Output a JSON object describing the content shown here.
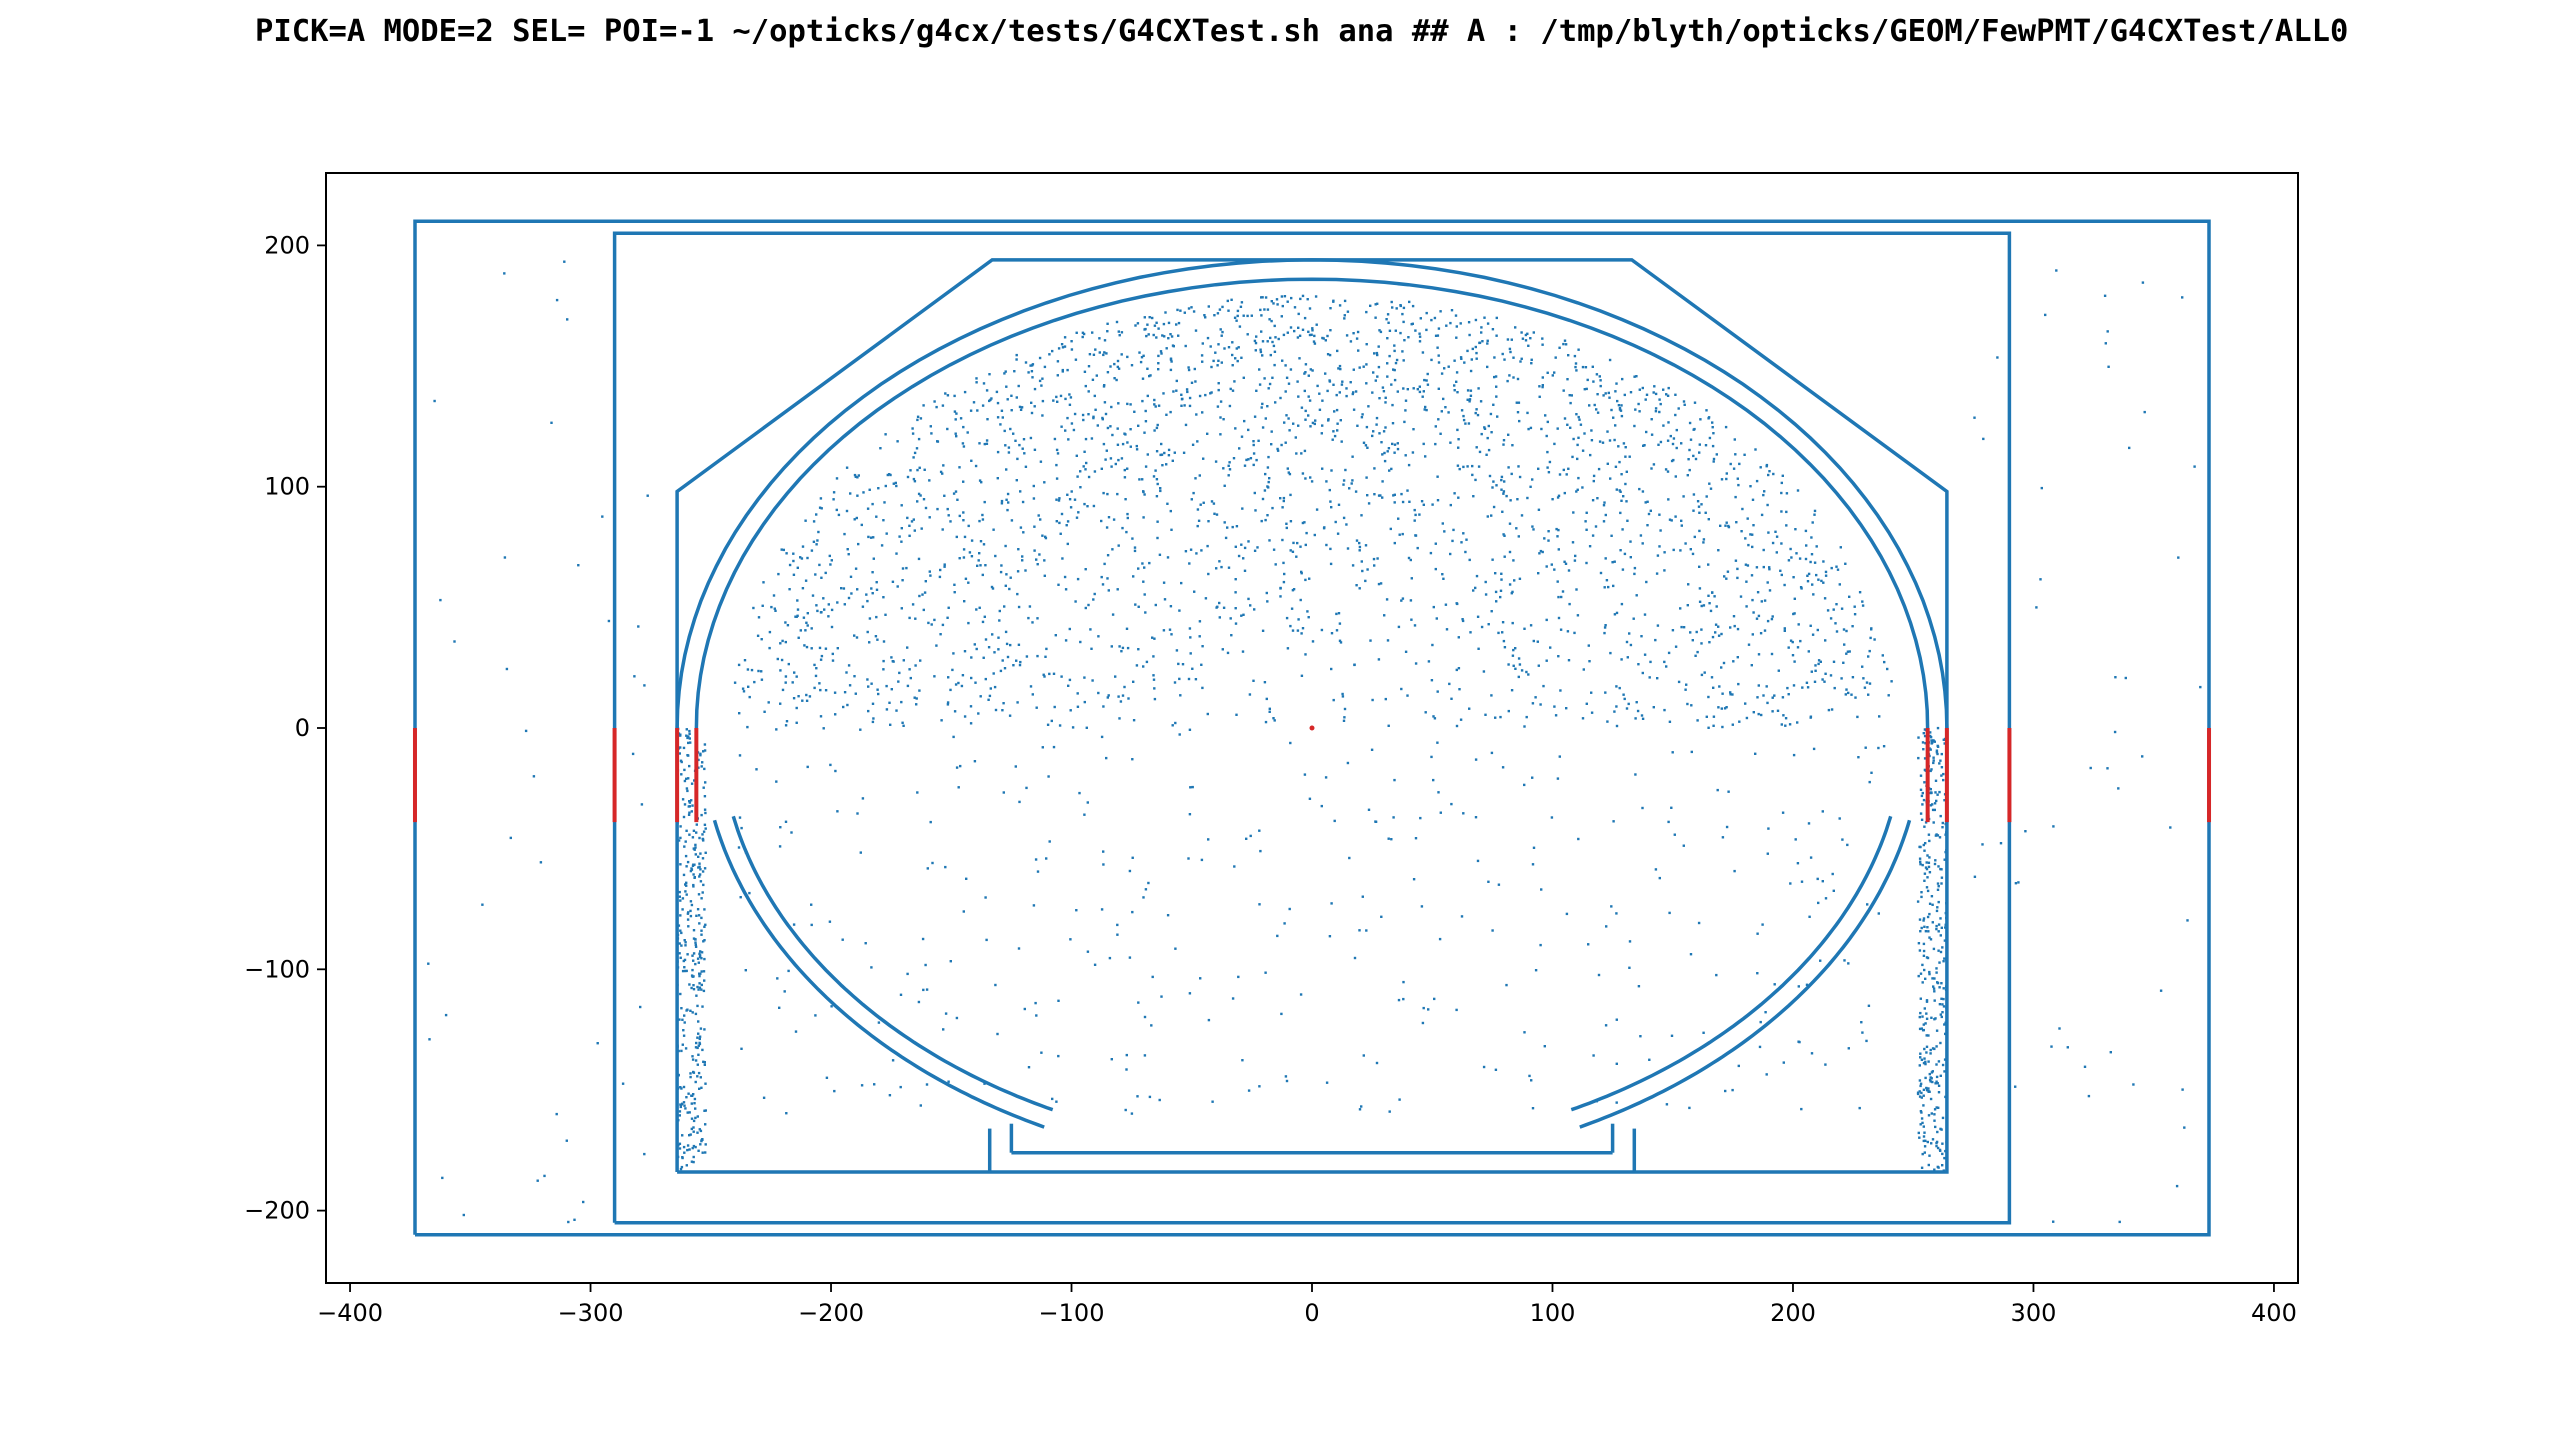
{
  "title": "PICK=A MODE=2 SEL= POI=-1 ~/opticks/g4cx/tests/G4CXTest.sh ana  ## A : /tmp/blyth/opticks/GEOM/FewPMT/G4CXTest/ALL0",
  "chart_data": {
    "type": "scatter",
    "title": "PICK=A MODE=2 SEL= POI=-1 ~/opticks/g4cx/tests/G4CXTest.sh ana  ## A : /tmp/blyth/opticks/GEOM/FewPMT/G4CXTest/ALL0",
    "xlabel": "",
    "ylabel": "",
    "xlim": [
      -410,
      410
    ],
    "ylim": [
      -230,
      230
    ],
    "grid": false,
    "legend": "none",
    "x_ticks": [
      -400,
      -300,
      -200,
      -100,
      0,
      100,
      200,
      300,
      400
    ],
    "x_tick_labels": [
      "−400",
      "−300",
      "−200",
      "−100",
      "0",
      "100",
      "200",
      "300",
      "400"
    ],
    "y_ticks": [
      -200,
      -100,
      0,
      100,
      200
    ],
    "y_tick_labels": [
      "−200",
      "−100",
      "0",
      "100",
      "200"
    ],
    "series": [
      {
        "kind": "outline",
        "color": "#1f77b4",
        "polylines": [
          [
            [
              -373,
              -210
            ],
            [
              373,
              -210
            ],
            [
              373,
              210
            ],
            [
              -373,
              210
            ],
            [
              -373,
              -210
            ]
          ],
          [
            [
              -290,
              -205
            ],
            [
              290,
              -205
            ],
            [
              290,
              205
            ],
            [
              -290,
              205
            ],
            [
              -290,
              -205
            ]
          ],
          [
            [
              -264,
              -184
            ],
            [
              264,
              -184
            ],
            [
              264,
              98
            ],
            [
              133,
              194
            ],
            [
              -133,
              194
            ],
            [
              -264,
              98
            ],
            [
              -264,
              -184
            ]
          ],
          [
            [
              -125,
              -176
            ],
            [
              125,
              -176
            ]
          ],
          [
            [
              -134,
              -184
            ],
            [
              -134,
              -166
            ]
          ],
          [
            [
              134,
              -184
            ],
            [
              134,
              -166
            ]
          ],
          [
            [
              -125,
              -176
            ],
            [
              -125,
              -164
            ]
          ],
          [
            [
              125,
              -176
            ],
            [
              125,
              -164
            ]
          ]
        ]
      },
      {
        "kind": "arc",
        "color": "#1f77b4",
        "arcs": [
          {
            "rx": 264,
            "ry": 194,
            "from_deg": 180,
            "to_deg": 0
          },
          {
            "rx": 256,
            "ry": 186,
            "from_deg": 180,
            "to_deg": 0
          },
          {
            "rx": 254,
            "ry": 184,
            "from_deg": -12,
            "to_deg": -64
          },
          {
            "rx": 254,
            "ry": 184,
            "from_deg": -116,
            "to_deg": -168
          },
          {
            "rx": 246,
            "ry": 176,
            "from_deg": -12,
            "to_deg": -64
          },
          {
            "rx": 246,
            "ry": 176,
            "from_deg": -116,
            "to_deg": -168
          }
        ]
      },
      {
        "kind": "highlight",
        "color": "#d62728",
        "segments": [
          [
            [
              -373,
              0
            ],
            [
              -373,
              -39
            ]
          ],
          [
            [
              -290,
              0
            ],
            [
              -290,
              -39
            ]
          ],
          [
            [
              -264,
              0
            ],
            [
              -264,
              -39
            ]
          ],
          [
            [
              -256,
              0
            ],
            [
              -256,
              -39
            ]
          ],
          [
            [
              256,
              0
            ],
            [
              256,
              -39
            ]
          ],
          [
            [
              264,
              0
            ],
            [
              264,
              -39
            ]
          ],
          [
            [
              290,
              0
            ],
            [
              290,
              -39
            ]
          ],
          [
            [
              373,
              0
            ],
            [
              373,
              -39
            ]
          ]
        ],
        "points": [
          [
            0,
            0
          ]
        ]
      }
    ]
  }
}
